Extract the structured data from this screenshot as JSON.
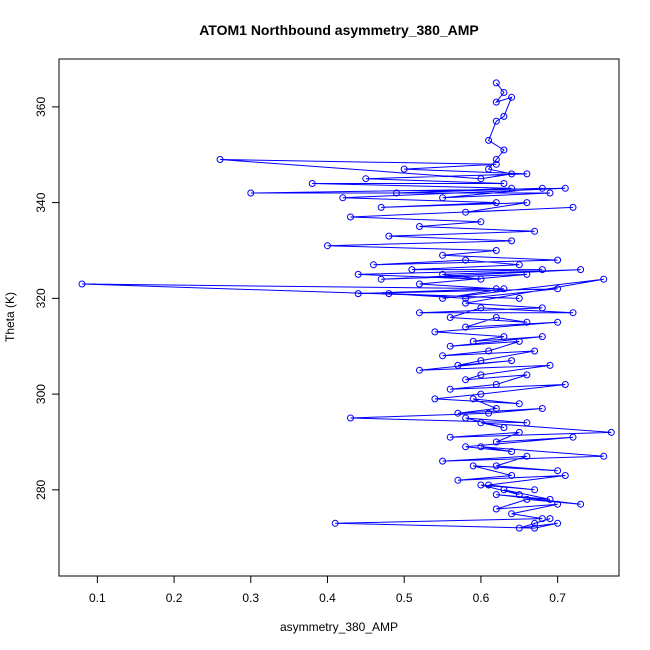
{
  "chart_data": {
    "type": "line",
    "title": "ATOM1 Northbound asymmetry_380_AMP",
    "xlabel": "asymmetry_380_AMP",
    "ylabel": "Theta (K)",
    "xlim": [
      0.05,
      0.78
    ],
    "ylim": [
      262,
      370
    ],
    "xticks": [
      0.1,
      0.2,
      0.3,
      0.4,
      0.5,
      0.6,
      0.7
    ],
    "xtick_labels": [
      "0.1",
      "0.2",
      "0.3",
      "0.4",
      "0.5",
      "0.6",
      "0.7"
    ],
    "yticks": [
      280,
      300,
      320,
      340,
      360
    ],
    "ytick_labels": [
      "280",
      "300",
      "320",
      "340",
      "360"
    ],
    "grid": false,
    "colors": {
      "series": "#0000ff",
      "axes": "#000000",
      "background": "#ffffff"
    },
    "series": [
      {
        "marker": "open-circle",
        "x": [
          0.62,
          0.63,
          0.62,
          0.64,
          0.63,
          0.62,
          0.61,
          0.63,
          0.62,
          0.61,
          0.64,
          0.6,
          0.26,
          0.62,
          0.5,
          0.66,
          0.45,
          0.63,
          0.38,
          0.64,
          0.49,
          0.68,
          0.55,
          0.69,
          0.3,
          0.71,
          0.42,
          0.62,
          0.47,
          0.66,
          0.58,
          0.72,
          0.43,
          0.6,
          0.52,
          0.67,
          0.48,
          0.64,
          0.4,
          0.62,
          0.55,
          0.7,
          0.46,
          0.58,
          0.65,
          0.51,
          0.68,
          0.44,
          0.6,
          0.55,
          0.73,
          0.47,
          0.66,
          0.52,
          0.62,
          0.44,
          0.7,
          0.58,
          0.48,
          0.65,
          0.08,
          0.63,
          0.55,
          0.76,
          0.58,
          0.68,
          0.52,
          0.72,
          0.6,
          0.56,
          0.66,
          0.62,
          0.58,
          0.7,
          0.54,
          0.63,
          0.59,
          0.68,
          0.56,
          0.65,
          0.61,
          0.55,
          0.67,
          0.6,
          0.57,
          0.64,
          0.52,
          0.69,
          0.6,
          0.58,
          0.66,
          0.62,
          0.56,
          0.71,
          0.6,
          0.54,
          0.65,
          0.59,
          0.62,
          0.57,
          0.68,
          0.61,
          0.43,
          0.66,
          0.58,
          0.63,
          0.6,
          0.77,
          0.56,
          0.65,
          0.62,
          0.72,
          0.58,
          0.64,
          0.6,
          0.76,
          0.55,
          0.66,
          0.62,
          0.7,
          0.59,
          0.64,
          0.57,
          0.71,
          0.61,
          0.67,
          0.6,
          0.65,
          0.63,
          0.69,
          0.62,
          0.73,
          0.66,
          0.62,
          0.7,
          0.64,
          0.68,
          0.41,
          0.67,
          0.7,
          0.65,
          0.69,
          0.67
        ],
        "y": [
          365,
          363,
          361,
          362,
          358,
          357,
          353,
          351,
          349,
          347,
          346,
          345,
          349,
          348,
          347,
          346,
          345,
          344,
          344,
          343,
          342,
          343,
          341,
          342,
          342,
          343,
          341,
          340,
          339,
          340,
          338,
          339,
          337,
          336,
          335,
          334,
          333,
          332,
          331,
          330,
          329,
          328,
          327,
          328,
          327,
          326,
          326,
          325,
          324,
          325,
          326,
          324,
          325,
          323,
          322,
          321,
          322,
          320,
          321,
          320,
          323,
          322,
          320,
          324,
          319,
          318,
          317,
          317,
          318,
          316,
          315,
          316,
          314,
          315,
          313,
          312,
          311,
          312,
          310,
          311,
          309,
          308,
          309,
          307,
          306,
          307,
          305,
          306,
          304,
          303,
          304,
          302,
          301,
          302,
          300,
          299,
          298,
          299,
          297,
          296,
          297,
          296,
          295,
          294,
          295,
          293,
          294,
          292,
          291,
          292,
          290,
          291,
          289,
          288,
          289,
          287,
          286,
          287,
          285,
          284,
          285,
          283,
          282,
          283,
          281,
          280,
          281,
          279,
          280,
          278,
          279,
          277,
          278,
          276,
          277,
          275,
          274,
          273,
          272,
          273,
          272,
          274,
          273
        ]
      }
    ]
  }
}
